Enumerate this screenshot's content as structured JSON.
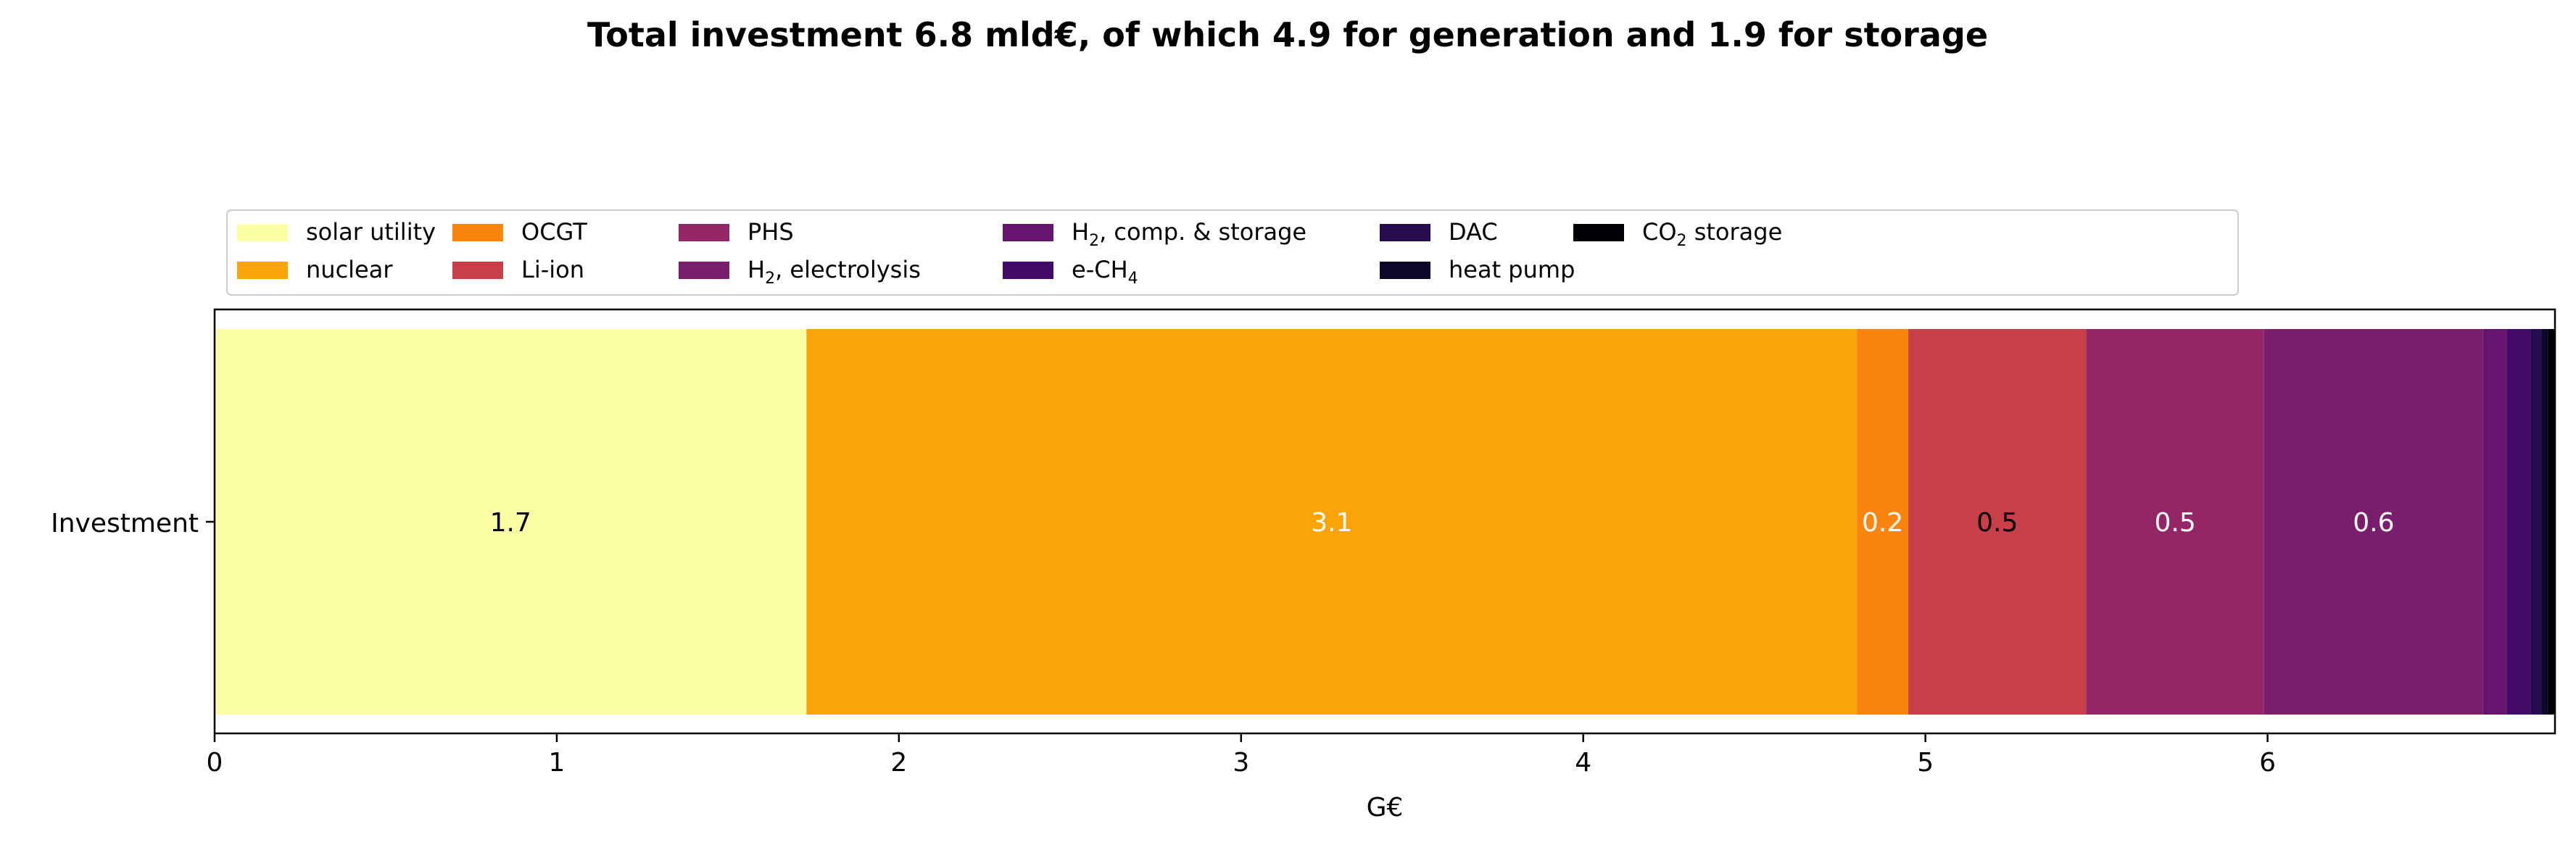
{
  "chart_data": {
    "type": "bar",
    "orientation": "horizontal",
    "stacked": true,
    "title": "Total investment 6.8 mld€, of which 4.9 for generation and 1.9 for storage",
    "xlabel": "G€",
    "ylabel": "",
    "xlim": [
      0,
      6.84
    ],
    "xticks": [
      0,
      1,
      2,
      3,
      4,
      5,
      6
    ],
    "categories": [
      "Investment"
    ],
    "grid": false,
    "legend_placement": "top-left, above plot",
    "series": [
      {
        "name": "solar utility",
        "label_main": "solar utility",
        "label_sub": "",
        "label_tail": "",
        "values": [
          1.73
        ],
        "color": "#fcffa4",
        "label": "1.7",
        "label_color": "#000000"
      },
      {
        "name": "nuclear",
        "label_main": "nuclear",
        "label_sub": "",
        "label_tail": "",
        "values": [
          3.07
        ],
        "color": "#fba40a",
        "label": "3.1",
        "label_color": "#ffffff"
      },
      {
        "name": "OCGT",
        "label_main": "OCGT",
        "label_sub": "",
        "label_tail": "",
        "values": [
          0.15
        ],
        "color": "#f98510",
        "label": "0.2",
        "label_color": "#ffffff"
      },
      {
        "name": "Li-ion",
        "label_main": "Li-ion",
        "label_sub": "",
        "label_tail": "",
        "values": [
          0.52
        ],
        "color": "#c83f4a",
        "label": "0.5",
        "label_color": "#000000"
      },
      {
        "name": "PHS",
        "label_main": "PHS",
        "label_sub": "",
        "label_tail": "",
        "values": [
          0.52
        ],
        "color": "#932667",
        "label": "0.5",
        "label_color": "#ffffff"
      },
      {
        "name": "H2, electrolysis",
        "label_main": "H",
        "label_sub": "2",
        "label_tail": ", electrolysis",
        "values": [
          0.64
        ],
        "color": "#7a1d6d",
        "label": "0.6",
        "label_color": "#ffffff"
      },
      {
        "name": "H2, comp. & storage",
        "label_main": "H",
        "label_sub": "2",
        "label_tail": ", comp. & storage",
        "values": [
          0.07
        ],
        "color": "#65156e",
        "label": "",
        "label_color": "#ffffff"
      },
      {
        "name": "e-CH4",
        "label_main": "e-CH",
        "label_sub": "4",
        "label_tail": "",
        "values": [
          0.07
        ],
        "color": "#420a68",
        "label": "",
        "label_color": "#ffffff"
      },
      {
        "name": "DAC",
        "label_main": "DAC",
        "label_sub": "",
        "label_tail": "",
        "values": [
          0.03
        ],
        "color": "#240c4f",
        "label": "",
        "label_color": "#ffffff"
      },
      {
        "name": "heat pump",
        "label_main": "heat pump",
        "label_sub": "",
        "label_tail": "",
        "values": [
          0.02
        ],
        "color": "#0d0829",
        "label": "",
        "label_color": "#ffffff"
      },
      {
        "name": "CO2 storage",
        "label_main": "CO",
        "label_sub": "2",
        "label_tail": " storage",
        "values": [
          0.02
        ],
        "color": "#000004",
        "label": "",
        "label_color": "#ffffff"
      }
    ]
  }
}
